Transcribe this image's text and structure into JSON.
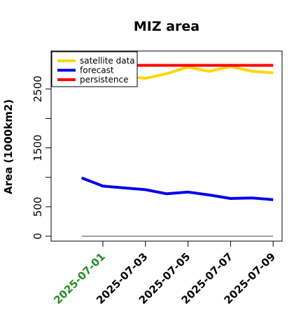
{
  "chart_data": {
    "type": "line",
    "title": "MIZ area",
    "xlabel": "",
    "ylabel": "Area (1000km2)",
    "x": [
      "2025-06-30",
      "2025-07-01",
      "2025-07-02",
      "2025-07-03",
      "2025-07-04",
      "2025-07-05",
      "2025-07-06",
      "2025-07-07",
      "2025-07-08",
      "2025-07-09"
    ],
    "x_tick_labels": [
      "2025-07-01",
      "2025-07-03",
      "2025-07-05",
      "2025-07-07",
      "2025-07-09"
    ],
    "x_tick_colors": [
      "#228B22",
      "#000000",
      "#000000",
      "#000000",
      "#000000"
    ],
    "ylim": [
      -100,
      3000
    ],
    "y_ticks": [
      0,
      500,
      1500,
      2500
    ],
    "y_ticks_minor": [
      1000,
      2000
    ],
    "grid": false,
    "legend_position": "top-left",
    "series": [
      {
        "name": "satellite data",
        "color": "#FFD700",
        "x": [
          "2025-07-01",
          "2025-07-02",
          "2025-07-03",
          "2025-07-04",
          "2025-07-05",
          "2025-07-06",
          "2025-07-07",
          "2025-07-08",
          "2025-07-09"
        ],
        "values": [
          2790,
          2720,
          2680,
          2760,
          2870,
          2800,
          2880,
          2800,
          2775
        ]
      },
      {
        "name": "forecast",
        "color": "#0000EE",
        "x": [
          "2025-06-30",
          "2025-07-01",
          "2025-07-02",
          "2025-07-03",
          "2025-07-04",
          "2025-07-05",
          "2025-07-06",
          "2025-07-07",
          "2025-07-08",
          "2025-07-09"
        ],
        "values": [
          990,
          850,
          820,
          790,
          720,
          750,
          700,
          640,
          650,
          620
        ]
      },
      {
        "name": "persistence",
        "color": "#FF0000",
        "x": [
          "2025-06-30",
          "2025-07-01",
          "2025-07-02",
          "2025-07-03",
          "2025-07-04",
          "2025-07-05",
          "2025-07-06",
          "2025-07-07",
          "2025-07-08",
          "2025-07-09"
        ],
        "values": [
          2900,
          2900,
          2900,
          2900,
          2900,
          2900,
          2900,
          2900,
          2900,
          2900
        ]
      }
    ],
    "reference_line": {
      "value": 0,
      "color": "#808080",
      "x": [
        "2025-06-30",
        "2025-07-09"
      ]
    }
  }
}
